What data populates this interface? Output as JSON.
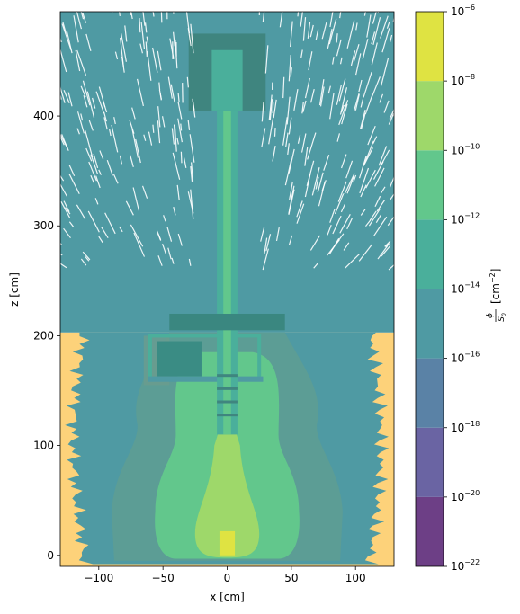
{
  "chart_data": {
    "type": "heatmap",
    "title": "",
    "xlabel": "x [cm]",
    "ylabel": "z [cm]",
    "xlim": [
      -130,
      130
    ],
    "ylim": [
      -10,
      495
    ],
    "x_ticks": [
      -100,
      -50,
      0,
      50,
      100
    ],
    "x_tick_labels": [
      "−100",
      "−50",
      "0",
      "50",
      "100"
    ],
    "y_ticks": [
      0,
      100,
      200,
      300,
      400
    ],
    "y_tick_labels": [
      "0",
      "100",
      "200",
      "300",
      "400"
    ],
    "colorbar": {
      "label": "ϕ/S₀ [cm⁻²]",
      "label_parts": {
        "phi": "ϕ",
        "s": "S",
        "sub": "0",
        "unit": "[cm",
        "exp": "−2",
        "close": "]"
      },
      "scale": "log",
      "range_exponents": [
        -22,
        -6
      ],
      "levels": [
        {
          "from_exp": -22,
          "to_exp": -20,
          "color": "#6d3f86"
        },
        {
          "from_exp": -20,
          "to_exp": -18,
          "color": "#6a64a3"
        },
        {
          "from_exp": -18,
          "to_exp": -16,
          "color": "#5a82a6"
        },
        {
          "from_exp": -16,
          "to_exp": -14,
          "color": "#4f9aa3"
        },
        {
          "from_exp": -14,
          "to_exp": -12,
          "color": "#4aaf9b"
        },
        {
          "from_exp": -12,
          "to_exp": -10,
          "color": "#62c78c"
        },
        {
          "from_exp": -10,
          "to_exp": -8,
          "color": "#9ed86a"
        },
        {
          "from_exp": -8,
          "to_exp": -6,
          "color": "#dfe342"
        }
      ],
      "tick_labels": [
        {
          "exp": -6,
          "text": "−6"
        },
        {
          "exp": -8,
          "text": "−8"
        },
        {
          "exp": -10,
          "text": "−10"
        },
        {
          "exp": -12,
          "text": "−12"
        },
        {
          "exp": -14,
          "text": "−14"
        },
        {
          "exp": -16,
          "text": "−16"
        },
        {
          "exp": -18,
          "text": "−18"
        },
        {
          "exp": -20,
          "text": "−20"
        },
        {
          "exp": -22,
          "text": "−22"
        }
      ]
    },
    "regions": [
      {
        "name": "ground-background",
        "color": "#fdd27a",
        "x": [
          -130,
          130
        ],
        "z": [
          -10,
          203
        ],
        "level_exp": "out-of-range"
      },
      {
        "name": "air-background",
        "color": "#4f9aa3",
        "x": [
          -130,
          130
        ],
        "z": [
          203,
          495
        ],
        "level_exp": [
          -16,
          -14
        ]
      },
      {
        "name": "ground-scatter-zone",
        "color": "#4f9aa3",
        "x": [
          -125,
          125
        ],
        "z": [
          -8,
          203
        ],
        "level_exp": [
          -16,
          -14
        ]
      },
      {
        "name": "outer-body",
        "color": "#5c9d95",
        "x": [
          -90,
          90
        ],
        "z": [
          -5,
          203
        ],
        "level_exp": [
          -16,
          -14
        ]
      },
      {
        "name": "mid-body",
        "color": "#62c78c",
        "x": [
          -60,
          60
        ],
        "z": [
          -3,
          185
        ],
        "level_exp": [
          -12,
          -10
        ]
      },
      {
        "name": "inner-core",
        "color": "#9ed86a",
        "x": [
          -12,
          12
        ],
        "z": [
          0,
          110
        ],
        "level_exp": [
          -10,
          -8
        ]
      },
      {
        "name": "hot-spot",
        "color": "#dfe342",
        "x": [
          -6,
          6
        ],
        "z": [
          0,
          22
        ],
        "level_exp": [
          -8,
          -6
        ]
      },
      {
        "name": "stack-tube",
        "color": "#4aaf9b",
        "x": [
          -8,
          8
        ],
        "z": [
          110,
          470
        ],
        "level_exp": [
          -14,
          -12
        ]
      },
      {
        "name": "top-block",
        "color": "#3f857f",
        "x": [
          -30,
          30
        ],
        "z": [
          405,
          475
        ],
        "level_exp": [
          -16,
          -14
        ]
      },
      {
        "name": "mid-block",
        "color": "#3a8780",
        "x": [
          -45,
          45
        ],
        "z": [
          205,
          220
        ],
        "level_exp": [
          -16,
          -14
        ]
      }
    ]
  }
}
